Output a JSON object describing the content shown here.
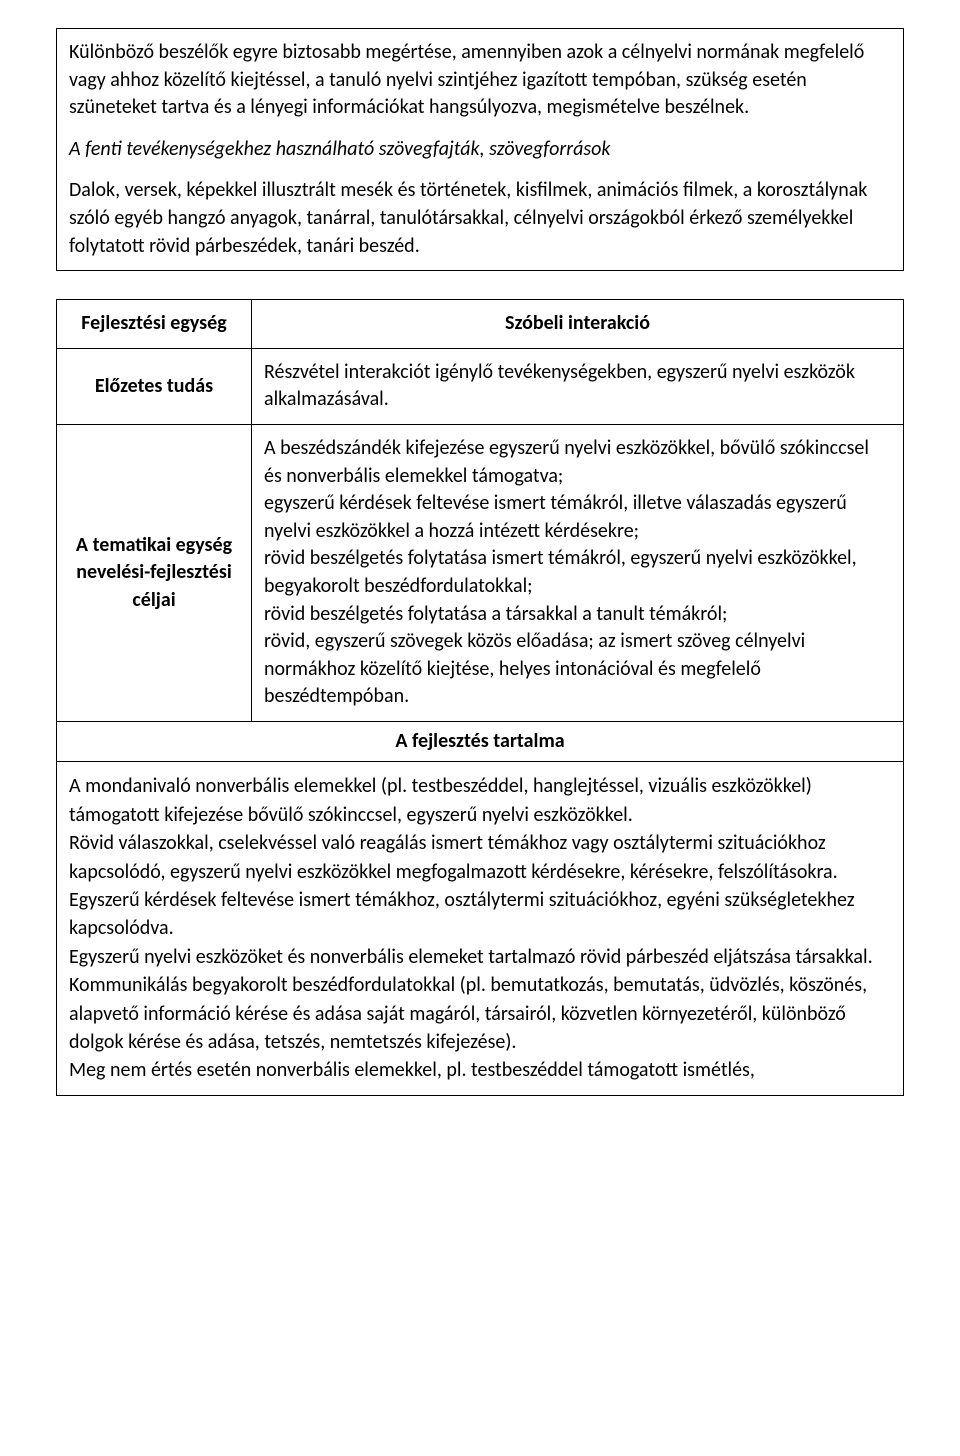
{
  "topBox": {
    "p1": "Különböző beszélők egyre biztosabb megértése, amennyiben azok a célnyelvi normának megfelelő vagy ahhoz közelítő kiejtéssel, a tanuló nyelvi szintjéhez igazított tempóban, szükség esetén szüneteket tartva és a lényegi információkat hangsúlyozva, megismételve beszélnek.",
    "p2": "A fenti tevékenységekhez használható szövegfajták, szövegforrások",
    "p3": "Dalok, versek, képekkel illusztrált mesék és történetek, kisfilmek, animációs filmek, a korosztálynak szóló egyéb hangzó anyagok, tanárral, tanulótársakkal, célnyelvi országokból érkező személyekkel folytatott rövid párbeszédek, tanári beszéd."
  },
  "table": {
    "row1_label": "Fejlesztési egység",
    "row1_value": "Szóbeli interakció",
    "row2_label": "Előzetes tudás",
    "row2_value": "Részvétel interakciót igénylő tevékenységekben, egyszerű nyelvi eszközök alkalmazásával.",
    "row3_label": "A tematikai egység nevelési-fejlesztési céljai",
    "row3_value": "A beszédszándék kifejezése egyszerű nyelvi eszközökkel, bővülő szókinccsel és nonverbális elemekkel támogatva;\negyszerű kérdések feltevése ismert témákról, illetve válaszadás egyszerű nyelvi eszközökkel a hozzá intézett kérdésekre;\nrövid beszélgetés folytatása ismert témákról, egyszerű nyelvi eszközökkel, begyakorolt beszédfordulatokkal;\nrövid beszélgetés folytatása a társakkal a tanult témákról;\nrövid, egyszerű szövegek közös előadása; az ismert szöveg célnyelvi normákhoz közelítő kiejtése, helyes intonációval és megfelelő beszédtempóban.",
    "section_title": "A fejlesztés tartalma",
    "content": "A mondanivaló nonverbális elemekkel (pl. testbeszéddel, hanglejtéssel, vizuális eszközökkel) támogatott kifejezése bővülő szókinccsel, egyszerű nyelvi eszközökkel.\nRövid válaszokkal, cselekvéssel való reagálás ismert témákhoz vagy osztálytermi szituációkhoz kapcsolódó, egyszerű nyelvi eszközökkel megfogalmazott kérdésekre, kérésekre, felszólításokra.\nEgyszerű kérdések feltevése ismert témákhoz, osztálytermi szituációkhoz, egyéni szükségletekhez kapcsolódva.\nEgyszerű nyelvi eszközöket és nonverbális elemeket tartalmazó rövid párbeszéd eljátszása társakkal.\nKommunikálás begyakorolt beszédfordulatokkal (pl. bemutatkozás, bemutatás, üdvözlés, köszönés, alapvető információ kérése és adása saját magáról, társairól, közvetlen környezetéről, különböző dolgok kérése és adása, tetszés, nemtetszés kifejezése).\nMeg nem értés esetén nonverbális elemekkel, pl. testbeszéddel támogatott ismétlés,"
  }
}
